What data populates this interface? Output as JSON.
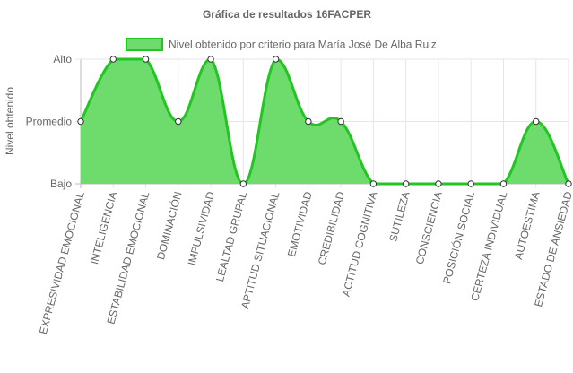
{
  "chart_data": {
    "type": "area",
    "title": "Gráfica de resultados 16FACPER",
    "ylabel": "Nivel obtenido",
    "xlabel": "",
    "y_ticks": [
      {
        "value": 0,
        "label": "Bajo"
      },
      {
        "value": 1,
        "label": "Promedio"
      },
      {
        "value": 2,
        "label": "Alto"
      }
    ],
    "ylim": [
      0,
      2
    ],
    "grid": true,
    "legend_position": "top",
    "categories": [
      "EXPRESIVIDAD EMOCIONAL",
      "INTELIGENCIA",
      "ESTABILIDAD EMOCIONAL",
      "DOMINACIÓN",
      "IMPULSIVIDAD",
      "LEALTAD GRUPAL",
      "APTITUD SITUACIONAL",
      "EMOTIVIDAD",
      "CREDIBILIDAD",
      "ACTITUD COGNITIVA",
      "SUTILEZA",
      "CONSCIENCIA",
      "POSICIÓN SOCIAL",
      "CERTEZA INDIVIDUAL",
      "AUTOESTIMA",
      "ESTADO DE ANSIEDAD"
    ],
    "series": [
      {
        "name": "Nivel obtenido por criterio para María José De Alba Ruiz",
        "values": [
          1,
          2,
          2,
          1,
          2,
          0,
          2,
          1,
          1,
          0,
          0,
          0,
          0,
          0,
          1,
          0
        ],
        "fill_color": "#6ddc6d",
        "line_color": "#22c522"
      }
    ]
  }
}
